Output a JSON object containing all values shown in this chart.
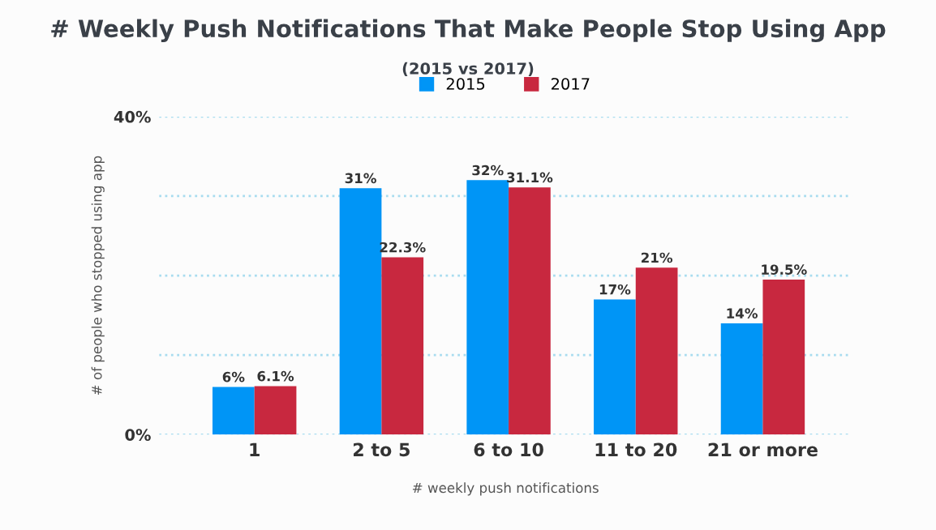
{
  "chart_data": {
    "type": "bar",
    "title": "# Weekly Push Notifications That Make People Stop Using App",
    "subtitle": "(2015 vs 2017)",
    "xlabel": "# weekly push notifications",
    "ylabel": "# of people who stopped using app",
    "categories": [
      "1",
      "2 to 5",
      "6 to 10",
      "11 to 20",
      "21 or more"
    ],
    "series": [
      {
        "name": "2015",
        "color": "#0095f6",
        "values": [
          6,
          31,
          32,
          17,
          14
        ],
        "value_labels": [
          "6%",
          "31%",
          "32%",
          "17%",
          "14%"
        ]
      },
      {
        "name": "2017",
        "color": "#c8283f",
        "values": [
          6.1,
          22.3,
          31.1,
          21,
          19.5
        ],
        "value_labels": [
          "6.1%",
          "22.3%",
          "31.1%",
          "21%",
          "19.5%"
        ]
      }
    ],
    "ylim": [
      0,
      40
    ],
    "yticks": [
      {
        "value": 0,
        "label": "0%"
      },
      {
        "value": 10,
        "label": null
      },
      {
        "value": 20,
        "label": null
      },
      {
        "value": 30,
        "label": null
      },
      {
        "value": 40,
        "label": "40%"
      }
    ],
    "grid": "y",
    "legend": "top"
  }
}
